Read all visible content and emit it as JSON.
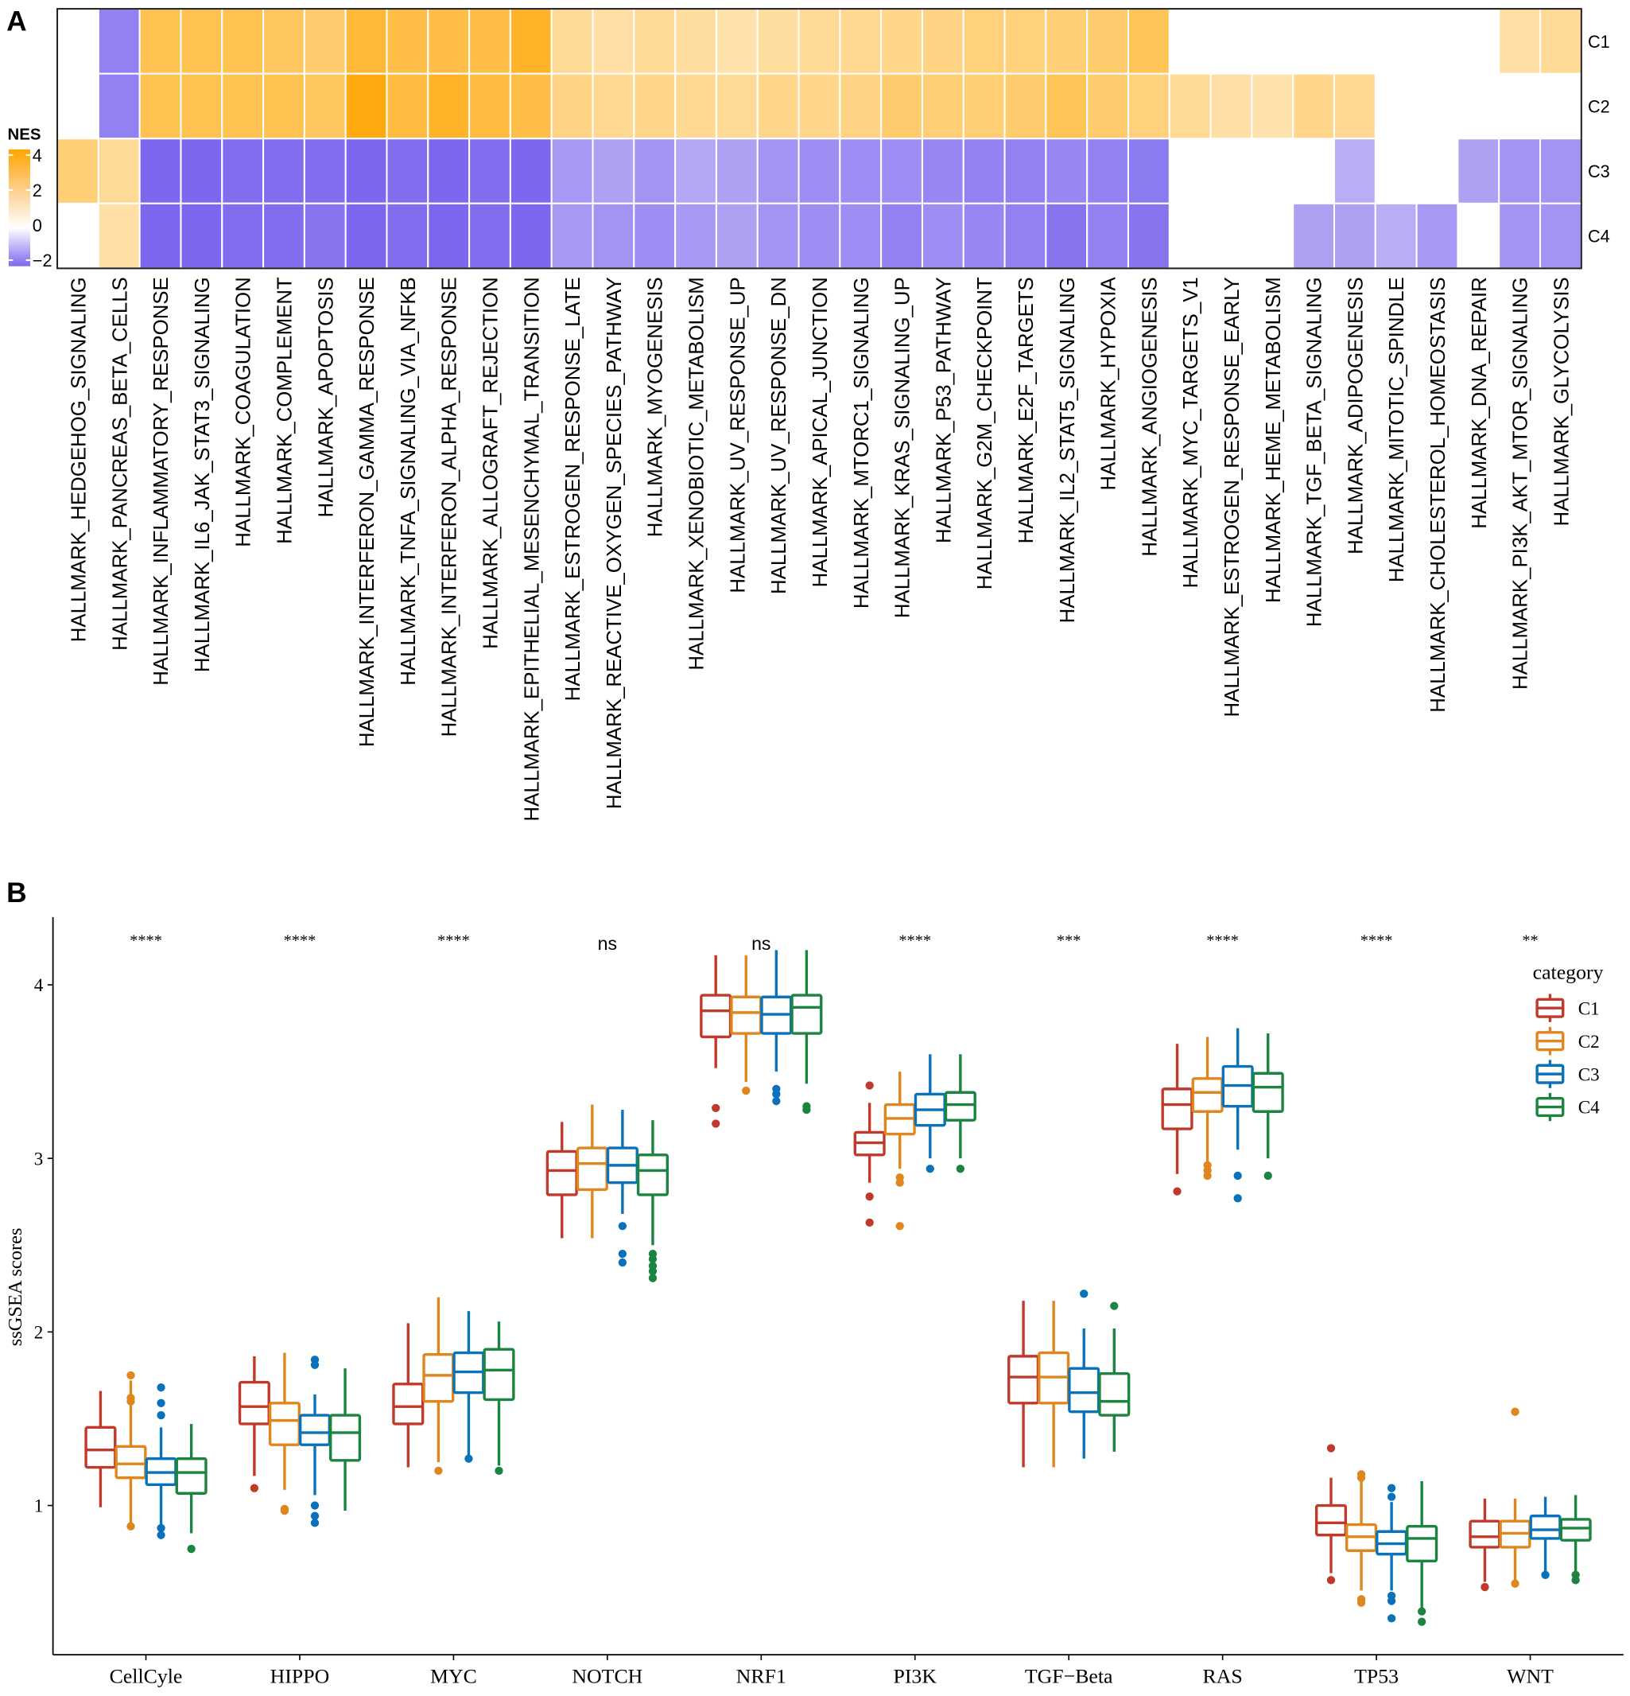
{
  "chart_data": [
    {
      "panel_label": "A",
      "type": "heatmap",
      "legend": {
        "title": "NES",
        "ticks": [
          4,
          2,
          0,
          -2
        ],
        "placement": "left"
      },
      "colors": {
        "high": "#FFA500",
        "mid": "#FFFFFF",
        "low": "#7B68EE"
      },
      "rows": [
        "C1",
        "C2",
        "C3",
        "C4"
      ],
      "columns": [
        "HALLMARK_HEDGEHOG_SIGNALING",
        "HALLMARK_PANCREAS_BETA_CELLS",
        "HALLMARK_INFLAMMATORY_RESPONSE",
        "HALLMARK_IL6_JAK_STAT3_SIGNALING",
        "HALLMARK_COAGULATION",
        "HALLMARK_COMPLEMENT",
        "HALLMARK_APOPTOSIS",
        "HALLMARK_INTERFERON_GAMMA_RESPONSE",
        "HALLMARK_TNFA_SIGNALING_VIA_NFKB",
        "HALLMARK_INTERFERON_ALPHA_RESPONSE",
        "HALLMARK_ALLOGRAFT_REJECTION",
        "HALLMARK_EPITHELIAL_MESENCHYMAL_TRANSITION",
        "HALLMARK_ESTROGEN_RESPONSE_LATE",
        "HALLMARK_REACTIVE_OXYGEN_SPECIES_PATHWAY",
        "HALLMARK_MYOGENESIS",
        "HALLMARK_XENOBIOTIC_METABOLISM",
        "HALLMARK_UV_RESPONSE_UP",
        "HALLMARK_UV_RESPONSE_DN",
        "HALLMARK_APICAL_JUNCTION",
        "HALLMARK_MTORC1_SIGNALING",
        "HALLMARK_KRAS_SIGNALING_UP",
        "HALLMARK_P53_PATHWAY",
        "HALLMARK_G2M_CHECKPOINT",
        "HALLMARK_E2F_TARGETS",
        "HALLMARK_IL2_STAT5_SIGNALING",
        "HALLMARK_HYPOXIA",
        "HALLMARK_ANGIOGENESIS",
        "HALLMARK_MYC_TARGETS_V1",
        "HALLMARK_ESTROGEN_RESPONSE_EARLY",
        "HALLMARK_HEME_METABOLISM",
        "HALLMARK_TGF_BETA_SIGNALING",
        "HALLMARK_ADIPOGENESIS",
        "HALLMARK_MITOTIC_SPINDLE",
        "HALLMARK_CHOLESTEROL_HOMEOSTASIS",
        "HALLMARK_DNA_REPAIR",
        "HALLMARK_PI3K_AKT_MTOR_SIGNALING",
        "HALLMARK_GLYCOLYSIS"
      ],
      "values": [
        [
          null,
          -1.8,
          3.0,
          3.0,
          3.0,
          2.8,
          2.6,
          3.3,
          3.1,
          3.1,
          3.1,
          3.5,
          2.0,
          1.8,
          2.0,
          1.9,
          1.7,
          1.9,
          2.0,
          2.1,
          2.2,
          2.3,
          2.4,
          2.4,
          2.5,
          2.6,
          2.9,
          null,
          null,
          null,
          null,
          null,
          null,
          null,
          null,
          1.8,
          2.0
        ],
        [
          null,
          -1.8,
          3.0,
          3.0,
          3.0,
          3.0,
          2.8,
          3.8,
          3.2,
          3.5,
          3.2,
          3.1,
          2.3,
          2.1,
          2.2,
          2.1,
          2.0,
          2.2,
          2.2,
          2.3,
          2.6,
          2.5,
          2.5,
          2.6,
          2.9,
          2.6,
          2.4,
          2.0,
          1.8,
          1.7,
          2.2,
          2.1,
          null,
          null,
          null,
          null,
          null
        ],
        [
          2.5,
          2.0,
          -2.2,
          -2.2,
          -2.1,
          -2.1,
          -2.1,
          -2.2,
          -2.1,
          -2.2,
          -2.1,
          -2.2,
          -1.4,
          -1.3,
          -1.5,
          -1.2,
          -1.3,
          -1.5,
          -1.6,
          -1.6,
          -1.6,
          -1.7,
          -1.8,
          -1.8,
          -1.7,
          -1.8,
          -1.9,
          null,
          null,
          null,
          null,
          -1.1,
          null,
          null,
          -1.3,
          -1.5,
          -1.5
        ],
        [
          null,
          1.8,
          -2.2,
          -2.2,
          -2.1,
          -2.1,
          -2.0,
          -2.2,
          -2.1,
          -2.2,
          -2.1,
          -2.2,
          -1.4,
          -1.5,
          -1.6,
          -1.4,
          -1.3,
          -1.5,
          -1.6,
          -1.6,
          -1.8,
          -1.6,
          -1.7,
          -1.8,
          -2.0,
          -1.8,
          -2.0,
          null,
          null,
          null,
          -1.3,
          -1.3,
          -1.1,
          -1.4,
          null,
          -1.5,
          -1.5
        ]
      ]
    },
    {
      "panel_label": "B",
      "type": "box",
      "ylabel": "ssGSEA scores",
      "xlabel": "",
      "ylim": [
        0.14,
        4.39
      ],
      "yticks": [
        1,
        2,
        3,
        4
      ],
      "grid": false,
      "categories": [
        "CellCyle",
        "HIPPO",
        "MYC",
        "NOTCH",
        "NRF1",
        "PI3K",
        "TGF−Beta",
        "RAS",
        "TP53",
        "WNT"
      ],
      "significance": [
        "****",
        "****",
        "****",
        "ns",
        "ns",
        "****",
        "***",
        "****",
        "****",
        "**"
      ],
      "legend": {
        "title": "category",
        "placement": "top-right"
      },
      "series": [
        {
          "name": "C1",
          "color": "#C0392B",
          "boxes": [
            {
              "min": 0.99,
              "q1": 1.22,
              "median": 1.32,
              "q3": 1.45,
              "max": 1.66,
              "outliers": []
            },
            {
              "min": 1.17,
              "q1": 1.47,
              "median": 1.57,
              "q3": 1.71,
              "max": 1.86,
              "outliers": [
                1.1
              ]
            },
            {
              "min": 1.22,
              "q1": 1.47,
              "median": 1.57,
              "q3": 1.7,
              "max": 2.05,
              "outliers": []
            },
            {
              "min": 2.54,
              "q1": 2.79,
              "median": 2.93,
              "q3": 3.04,
              "max": 3.21,
              "outliers": []
            },
            {
              "min": 3.52,
              "q1": 3.7,
              "median": 3.85,
              "q3": 3.94,
              "max": 4.17,
              "outliers": [
                3.29,
                3.2
              ]
            },
            {
              "min": 2.86,
              "q1": 3.02,
              "median": 3.09,
              "q3": 3.15,
              "max": 3.32,
              "outliers": [
                3.42,
                2.78,
                2.63
              ]
            },
            {
              "min": 1.22,
              "q1": 1.59,
              "median": 1.74,
              "q3": 1.86,
              "max": 2.18,
              "outliers": []
            },
            {
              "min": 2.91,
              "q1": 3.17,
              "median": 3.31,
              "q3": 3.4,
              "max": 3.66,
              "outliers": [
                2.81
              ]
            },
            {
              "min": 0.61,
              "q1": 0.83,
              "median": 0.9,
              "q3": 1.0,
              "max": 1.16,
              "outliers": [
                1.33,
                0.57
              ]
            },
            {
              "min": 0.56,
              "q1": 0.76,
              "median": 0.82,
              "q3": 0.91,
              "max": 1.04,
              "outliers": [
                0.53
              ]
            }
          ]
        },
        {
          "name": "C2",
          "color": "#E0861E",
          "boxes": [
            {
              "min": 0.89,
              "q1": 1.16,
              "median": 1.24,
              "q3": 1.34,
              "max": 1.72,
              "outliers": [
                1.75,
                1.62,
                1.6,
                0.88
              ]
            },
            {
              "min": 1.09,
              "q1": 1.35,
              "median": 1.49,
              "q3": 1.59,
              "max": 1.88,
              "outliers": [
                0.98,
                0.97
              ]
            },
            {
              "min": 1.25,
              "q1": 1.6,
              "median": 1.75,
              "q3": 1.87,
              "max": 2.2,
              "outliers": [
                1.2
              ]
            },
            {
              "min": 2.54,
              "q1": 2.82,
              "median": 2.97,
              "q3": 3.06,
              "max": 3.31,
              "outliers": []
            },
            {
              "min": 3.44,
              "q1": 3.72,
              "median": 3.84,
              "q3": 3.93,
              "max": 4.17,
              "outliers": [
                3.39
              ]
            },
            {
              "min": 2.94,
              "q1": 3.14,
              "median": 3.23,
              "q3": 3.31,
              "max": 3.5,
              "outliers": [
                2.89,
                2.86,
                2.61
              ]
            },
            {
              "min": 1.22,
              "q1": 1.59,
              "median": 1.74,
              "q3": 1.88,
              "max": 2.18,
              "outliers": []
            },
            {
              "min": 2.98,
              "q1": 3.27,
              "median": 3.38,
              "q3": 3.46,
              "max": 3.7,
              "outliers": [
                2.96,
                2.93,
                2.9
              ]
            },
            {
              "min": 0.51,
              "q1": 0.74,
              "median": 0.82,
              "q3": 0.89,
              "max": 1.14,
              "outliers": [
                1.18,
                1.16,
                0.46,
                0.44
              ]
            },
            {
              "min": 0.56,
              "q1": 0.76,
              "median": 0.84,
              "q3": 0.91,
              "max": 1.04,
              "outliers": [
                1.54,
                0.55
              ]
            }
          ]
        },
        {
          "name": "C3",
          "color": "#0A72BA",
          "boxes": [
            {
              "min": 0.89,
              "q1": 1.12,
              "median": 1.19,
              "q3": 1.27,
              "max": 1.45,
              "outliers": [
                1.68,
                1.59,
                1.52,
                0.87,
                0.83
              ]
            },
            {
              "min": 1.06,
              "q1": 1.35,
              "median": 1.42,
              "q3": 1.52,
              "max": 1.64,
              "outliers": [
                1.84,
                1.81,
                1.0,
                0.94,
                0.9
              ]
            },
            {
              "min": 1.29,
              "q1": 1.65,
              "median": 1.77,
              "q3": 1.88,
              "max": 2.12,
              "outliers": [
                1.27
              ]
            },
            {
              "min": 2.68,
              "q1": 2.86,
              "median": 2.96,
              "q3": 3.06,
              "max": 3.28,
              "outliers": [
                2.61,
                2.45,
                2.4
              ]
            },
            {
              "min": 3.5,
              "q1": 3.72,
              "median": 3.83,
              "q3": 3.93,
              "max": 4.2,
              "outliers": [
                3.4,
                3.37,
                3.33
              ]
            },
            {
              "min": 3.0,
              "q1": 3.19,
              "median": 3.28,
              "q3": 3.37,
              "max": 3.6,
              "outliers": [
                2.94
              ]
            },
            {
              "min": 1.27,
              "q1": 1.54,
              "median": 1.65,
              "q3": 1.79,
              "max": 2.02,
              "outliers": [
                2.22
              ]
            },
            {
              "min": 3.05,
              "q1": 3.3,
              "median": 3.42,
              "q3": 3.53,
              "max": 3.75,
              "outliers": [
                2.9,
                2.77
              ]
            },
            {
              "min": 0.51,
              "q1": 0.72,
              "median": 0.78,
              "q3": 0.85,
              "max": 1.02,
              "outliers": [
                1.1,
                1.05,
                0.48,
                0.45,
                0.35
              ]
            },
            {
              "min": 0.61,
              "q1": 0.81,
              "median": 0.86,
              "q3": 0.94,
              "max": 1.05,
              "outliers": [
                0.6
              ]
            }
          ]
        },
        {
          "name": "C4",
          "color": "#1A8440",
          "boxes": [
            {
              "min": 0.84,
              "q1": 1.07,
              "median": 1.19,
              "q3": 1.27,
              "max": 1.47,
              "outliers": [
                0.75
              ]
            },
            {
              "min": 0.97,
              "q1": 1.26,
              "median": 1.42,
              "q3": 1.52,
              "max": 1.79,
              "outliers": []
            },
            {
              "min": 1.23,
              "q1": 1.61,
              "median": 1.78,
              "q3": 1.9,
              "max": 2.06,
              "outliers": [
                1.2
              ]
            },
            {
              "min": 2.5,
              "q1": 2.79,
              "median": 2.93,
              "q3": 3.02,
              "max": 3.22,
              "outliers": [
                2.45,
                2.42,
                2.38,
                2.35,
                2.31
              ]
            },
            {
              "min": 3.43,
              "q1": 3.72,
              "median": 3.87,
              "q3": 3.94,
              "max": 4.2,
              "outliers": [
                3.3,
                3.28
              ]
            },
            {
              "min": 3.0,
              "q1": 3.22,
              "median": 3.31,
              "q3": 3.38,
              "max": 3.6,
              "outliers": [
                2.94
              ]
            },
            {
              "min": 1.31,
              "q1": 1.52,
              "median": 1.6,
              "q3": 1.76,
              "max": 2.02,
              "outliers": [
                2.15
              ]
            },
            {
              "min": 3.0,
              "q1": 3.27,
              "median": 3.41,
              "q3": 3.49,
              "max": 3.72,
              "outliers": [
                2.9
              ]
            },
            {
              "min": 0.41,
              "q1": 0.68,
              "median": 0.81,
              "q3": 0.88,
              "max": 1.14,
              "outliers": [
                0.39,
                0.33
              ]
            },
            {
              "min": 0.61,
              "q1": 0.8,
              "median": 0.87,
              "q3": 0.92,
              "max": 1.06,
              "outliers": [
                0.6,
                0.57
              ]
            }
          ]
        }
      ]
    }
  ]
}
